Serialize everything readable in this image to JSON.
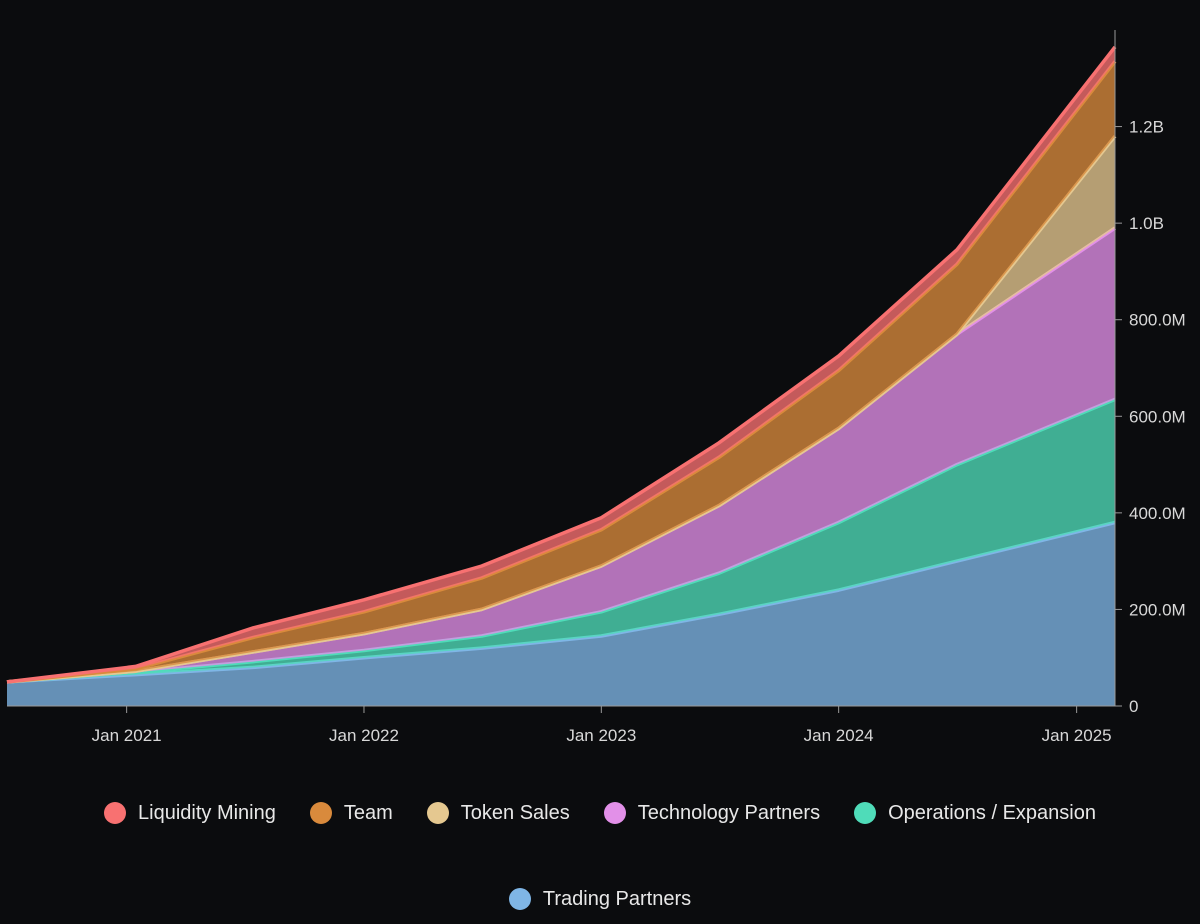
{
  "chart_data": {
    "type": "area",
    "stacked": true,
    "x": [
      "2020-07-01",
      "2021-01-15",
      "2021-07-15",
      "2022-01-01",
      "2022-07-01",
      "2023-01-01",
      "2023-07-01",
      "2024-01-01",
      "2024-07-01",
      "2025-03-01"
    ],
    "x_ticks": [
      "Jan 2021",
      "Jan 2022",
      "Jan 2023",
      "Jan 2024",
      "Jan 2025"
    ],
    "y_ticks": [
      "0",
      "200.0M",
      "400.0M",
      "600.0M",
      "800.0M",
      "1.0B",
      "1.2B"
    ],
    "y_tick_values": [
      0,
      200000000,
      400000000,
      600000000,
      800000000,
      1000000000,
      1200000000
    ],
    "ylim": [
      0,
      1400000000
    ],
    "y_axis_side": "right",
    "legend_position": "bottom",
    "grid": false,
    "series": [
      {
        "name": "Trading Partners",
        "color": "#7fb6e6",
        "values": [
          50000000,
          65000000,
          80000000,
          100000000,
          120000000,
          145000000,
          190000000,
          240000000,
          300000000,
          380000000
        ]
      },
      {
        "name": "Operations / Expansion",
        "color": "#4fdcb9",
        "values": [
          0,
          5000000,
          12000000,
          15000000,
          25000000,
          50000000,
          85000000,
          140000000,
          200000000,
          255000000
        ]
      },
      {
        "name": "Technology Partners",
        "color": "#e290e8",
        "values": [
          0,
          2000000,
          20000000,
          35000000,
          55000000,
          95000000,
          140000000,
          195000000,
          270000000,
          355000000
        ]
      },
      {
        "name": "Token Sales",
        "color": "#e5c890",
        "values": [
          0,
          0,
          0,
          0,
          0,
          0,
          0,
          0,
          0,
          190000000
        ]
      },
      {
        "name": "Team",
        "color": "#d98a3c",
        "values": [
          0,
          5000000,
          30000000,
          45000000,
          65000000,
          75000000,
          100000000,
          120000000,
          145000000,
          155000000
        ]
      },
      {
        "name": "Liquidity Mining",
        "color": "#f87171",
        "values": [
          0,
          5000000,
          20000000,
          25000000,
          25000000,
          25000000,
          30000000,
          30000000,
          30000000,
          30000000
        ]
      }
    ]
  },
  "legend": [
    {
      "label": "Liquidity Mining",
      "color": "#f87171"
    },
    {
      "label": "Team",
      "color": "#d98a3c"
    },
    {
      "label": "Token Sales",
      "color": "#e5c890"
    },
    {
      "label": "Technology Partners",
      "color": "#e290e8"
    },
    {
      "label": "Operations / Expansion",
      "color": "#4fdcb9"
    },
    {
      "label": "Trading Partners",
      "color": "#7fb6e6"
    }
  ]
}
